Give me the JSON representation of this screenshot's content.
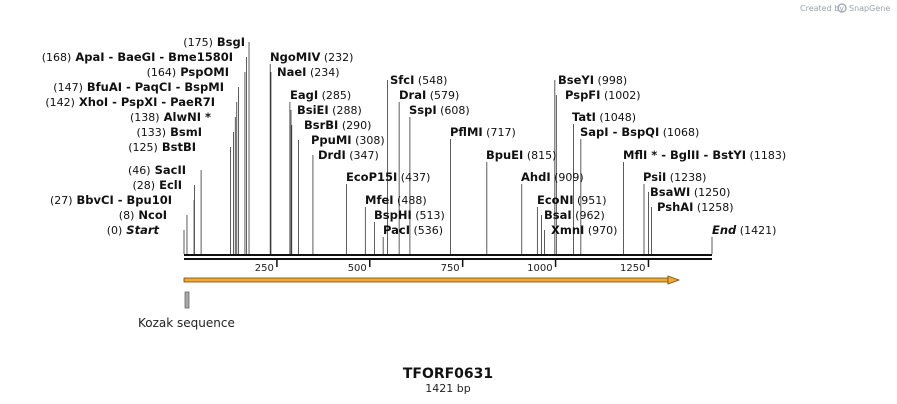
{
  "credit": {
    "prefix": "Created by",
    "brand": "SnapGene"
  },
  "sequence": {
    "name": "TFORF0631",
    "length_label": "1421 bp",
    "length": 1421
  },
  "axis": {
    "ticks": [
      250,
      500,
      750,
      1000,
      1250
    ]
  },
  "feature": {
    "label": "Kozak sequence",
    "start": 0,
    "end": 10,
    "arrow_start": 0,
    "arrow_end": 1332
  },
  "sites": [
    {
      "text": "(175)  BsgI",
      "parts": [
        {
          "t": "(175)",
          "k": "pos"
        },
        {
          "t": "BsgI",
          "k": "enz"
        }
      ],
      "pos": 175
    },
    {
      "text": "(168)  ApaI  - BaeGI  - Bme1580I",
      "parts": [
        {
          "t": "(168)",
          "k": "pos"
        },
        {
          "t": "ApaI",
          "k": "enz"
        },
        {
          "t": "- BaeGI",
          "k": "enz"
        },
        {
          "t": "- Bme1580I",
          "k": "enz"
        }
      ],
      "pos": 168
    },
    {
      "text": "(164)  PspOMI",
      "parts": [
        {
          "t": "(164)",
          "k": "pos"
        },
        {
          "t": "PspOMI",
          "k": "enz"
        }
      ],
      "pos": 164
    },
    {
      "text": "(147)  BfuAI  - PaqCI  - BspMI",
      "parts": [
        {
          "t": "(147)",
          "k": "pos"
        },
        {
          "t": "BfuAI",
          "k": "enz"
        },
        {
          "t": "- PaqCI",
          "k": "enz"
        },
        {
          "t": "- BspMI",
          "k": "enz"
        }
      ],
      "pos": 147
    },
    {
      "text": "(142)  XhoI  - PspXI  - PaeR7I",
      "parts": [
        {
          "t": "(142)",
          "k": "pos"
        },
        {
          "t": "XhoI",
          "k": "enz"
        },
        {
          "t": "- PspXI",
          "k": "enz"
        },
        {
          "t": "- PaeR7I",
          "k": "enz"
        }
      ],
      "pos": 142
    },
    {
      "text": "(138)  AlwNI *",
      "parts": [
        {
          "t": "(138)",
          "k": "pos"
        },
        {
          "t": "AlwNI *",
          "k": "enz"
        }
      ],
      "pos": 138
    },
    {
      "text": "(133)  BsmI",
      "parts": [
        {
          "t": "(133)",
          "k": "pos"
        },
        {
          "t": "BsmI",
          "k": "enz"
        }
      ],
      "pos": 133
    },
    {
      "text": "(125)  BstBI",
      "parts": [
        {
          "t": "(125)",
          "k": "pos"
        },
        {
          "t": "BstBI",
          "k": "enz"
        }
      ],
      "pos": 125
    },
    {
      "text": "(46)  SacII",
      "parts": [
        {
          "t": "(46)",
          "k": "pos"
        },
        {
          "t": "SacII",
          "k": "enz"
        }
      ],
      "pos": 46
    },
    {
      "text": "(28)  EclI",
      "parts": [
        {
          "t": "(28)",
          "k": "pos"
        },
        {
          "t": "EclI",
          "k": "enz"
        }
      ],
      "pos": 28
    },
    {
      "text": "(27)  BbvCI  - Bpu10I",
      "parts": [
        {
          "t": "(27)",
          "k": "pos"
        },
        {
          "t": "BbvCI",
          "k": "enz"
        },
        {
          "t": "- Bpu10I",
          "k": "enz"
        }
      ],
      "pos": 27
    },
    {
      "text": "(8)  NcoI",
      "parts": [
        {
          "t": "(8)",
          "k": "pos"
        },
        {
          "t": "NcoI",
          "k": "enz"
        }
      ],
      "pos": 8
    },
    {
      "text": "(0)  Start",
      "parts": [
        {
          "t": "(0)",
          "k": "pos"
        },
        {
          "t": "Start",
          "k": "ital"
        }
      ],
      "pos": 0
    },
    {
      "text": "NgoMIV  (232)",
      "parts": [
        {
          "t": "NgoMIV",
          "k": "enz"
        },
        {
          "t": "(232)",
          "k": "pos"
        }
      ],
      "pos": 232
    },
    {
      "text": "NaeI  (234)",
      "parts": [
        {
          "t": "NaeI",
          "k": "enz"
        },
        {
          "t": "(234)",
          "k": "pos"
        }
      ],
      "pos": 234
    },
    {
      "text": "EagI  (285)",
      "parts": [
        {
          "t": "EagI",
          "k": "enz"
        },
        {
          "t": "(285)",
          "k": "pos"
        }
      ],
      "pos": 285
    },
    {
      "text": "BsiEI  (288)",
      "parts": [
        {
          "t": "BsiEI",
          "k": "enz"
        },
        {
          "t": "(288)",
          "k": "pos"
        }
      ],
      "pos": 288
    },
    {
      "text": "BsrBI  (290)",
      "parts": [
        {
          "t": "BsrBI",
          "k": "enz"
        },
        {
          "t": "(290)",
          "k": "pos"
        }
      ],
      "pos": 290
    },
    {
      "text": "PpuMI  (308)",
      "parts": [
        {
          "t": "PpuMI",
          "k": "enz"
        },
        {
          "t": "(308)",
          "k": "pos"
        }
      ],
      "pos": 308
    },
    {
      "text": "DrdI  (347)",
      "parts": [
        {
          "t": "DrdI",
          "k": "enz"
        },
        {
          "t": "(347)",
          "k": "pos"
        }
      ],
      "pos": 347
    },
    {
      "text": "SfcI  (548)",
      "parts": [
        {
          "t": "SfcI",
          "k": "enz"
        },
        {
          "t": "(548)",
          "k": "pos"
        }
      ],
      "pos": 548
    },
    {
      "text": "DraI  (579)",
      "parts": [
        {
          "t": "DraI",
          "k": "enz"
        },
        {
          "t": "(579)",
          "k": "pos"
        }
      ],
      "pos": 579
    },
    {
      "text": "SspI  (608)",
      "parts": [
        {
          "t": "SspI",
          "k": "enz"
        },
        {
          "t": "(608)",
          "k": "pos"
        }
      ],
      "pos": 608
    },
    {
      "text": "EcoP15I  (437)",
      "parts": [
        {
          "t": "EcoP15I",
          "k": "enz"
        },
        {
          "t": "(437)",
          "k": "pos"
        }
      ],
      "pos": 437
    },
    {
      "text": "MfeI  (488)",
      "parts": [
        {
          "t": "MfeI",
          "k": "enz"
        },
        {
          "t": "(488)",
          "k": "pos"
        }
      ],
      "pos": 488
    },
    {
      "text": "BspHI  (513)",
      "parts": [
        {
          "t": "BspHI",
          "k": "enz"
        },
        {
          "t": "(513)",
          "k": "pos"
        }
      ],
      "pos": 513
    },
    {
      "text": "PacI  (536)",
      "parts": [
        {
          "t": "PacI",
          "k": "enz"
        },
        {
          "t": "(536)",
          "k": "pos"
        }
      ],
      "pos": 536
    },
    {
      "text": "PflMI  (717)",
      "parts": [
        {
          "t": "PflMI",
          "k": "enz"
        },
        {
          "t": "(717)",
          "k": "pos"
        }
      ],
      "pos": 717
    },
    {
      "text": "BpuEI  (815)",
      "parts": [
        {
          "t": "BpuEI",
          "k": "enz"
        },
        {
          "t": "(815)",
          "k": "pos"
        }
      ],
      "pos": 815
    },
    {
      "text": "AhdI  (909)",
      "parts": [
        {
          "t": "AhdI",
          "k": "enz"
        },
        {
          "t": "(909)",
          "k": "pos"
        }
      ],
      "pos": 909
    },
    {
      "text": "EcoNI  (951)",
      "parts": [
        {
          "t": "EcoNI",
          "k": "enz"
        },
        {
          "t": "(951)",
          "k": "pos"
        }
      ],
      "pos": 951
    },
    {
      "text": "BsaI  (962)",
      "parts": [
        {
          "t": "BsaI",
          "k": "enz"
        },
        {
          "t": "(962)",
          "k": "pos"
        }
      ],
      "pos": 962
    },
    {
      "text": "XmnI  (970)",
      "parts": [
        {
          "t": "XmnI",
          "k": "enz"
        },
        {
          "t": "(970)",
          "k": "pos"
        }
      ],
      "pos": 970
    },
    {
      "text": "BseYI  (998)",
      "parts": [
        {
          "t": "BseYI",
          "k": "enz"
        },
        {
          "t": "(998)",
          "k": "pos"
        }
      ],
      "pos": 998
    },
    {
      "text": "PspFI  (1002)",
      "parts": [
        {
          "t": "PspFI",
          "k": "enz"
        },
        {
          "t": "(1002)",
          "k": "pos"
        }
      ],
      "pos": 1002
    },
    {
      "text": "TatI  (1048)",
      "parts": [
        {
          "t": "TatI",
          "k": "enz"
        },
        {
          "t": "(1048)",
          "k": "pos"
        }
      ],
      "pos": 1048
    },
    {
      "text": "SapI  - BspQI  (1068)",
      "parts": [
        {
          "t": "SapI",
          "k": "enz"
        },
        {
          "t": "- BspQI",
          "k": "enz"
        },
        {
          "t": "(1068)",
          "k": "pos"
        }
      ],
      "pos": 1068
    },
    {
      "text": "MflI *  - BglII  - BstYI  (1183)",
      "parts": [
        {
          "t": "MflI *",
          "k": "enz"
        },
        {
          "t": "- BglII",
          "k": "enz"
        },
        {
          "t": "- BstYI",
          "k": "enz"
        },
        {
          "t": "(1183)",
          "k": "pos"
        }
      ],
      "pos": 1183
    },
    {
      "text": "PsiI  (1238)",
      "parts": [
        {
          "t": "PsiI",
          "k": "enz"
        },
        {
          "t": "(1238)",
          "k": "pos"
        }
      ],
      "pos": 1238
    },
    {
      "text": "BsaWI  (1250)",
      "parts": [
        {
          "t": "BsaWI",
          "k": "enz"
        },
        {
          "t": "(1250)",
          "k": "pos"
        }
      ],
      "pos": 1250
    },
    {
      "text": "PshAI  (1258)",
      "parts": [
        {
          "t": "PshAI",
          "k": "enz"
        },
        {
          "t": "(1258)",
          "k": "pos"
        }
      ],
      "pos": 1258
    },
    {
      "text": "End  (1421)",
      "parts": [
        {
          "t": "End",
          "k": "ital"
        },
        {
          "t": "(1421)",
          "k": "pos"
        }
      ],
      "pos": 1421
    }
  ]
}
